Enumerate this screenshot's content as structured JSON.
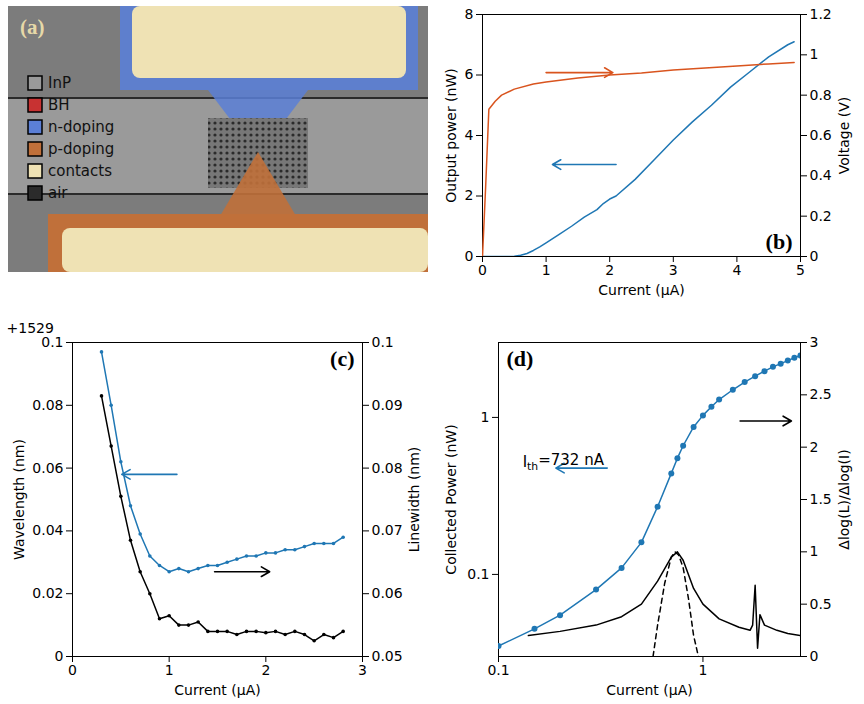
{
  "chart_data": [
    {
      "type": "image",
      "title": "(a)",
      "items": [
        {
          "name": "InP",
          "color": "#9a9a9a"
        },
        {
          "name": "BH",
          "color": "#c83232"
        },
        {
          "name": "n-doping",
          "color": "#5b7fd6"
        },
        {
          "name": "p-doping",
          "color": "#c0703a"
        },
        {
          "name": "contacts",
          "color": "#efe2b4"
        },
        {
          "name": "air",
          "color": "#2b2b2b"
        }
      ]
    },
    {
      "type": "line",
      "title": "(b)",
      "x_label": "Current (μA)",
      "y_label": "Output power (nW)",
      "y2_label": "Voltage (V)",
      "xlim": [
        0,
        5
      ],
      "xticks": [
        0,
        1,
        2,
        3,
        4,
        5
      ],
      "ylim": [
        0,
        8
      ],
      "yticks": [
        0,
        2,
        4,
        6,
        8
      ],
      "y2lim": [
        0,
        1.2
      ],
      "y2ticks": [
        0,
        0.2,
        0.4,
        0.6,
        0.8,
        1,
        1.2
      ],
      "series": [
        {
          "color": "#1f77b4",
          "axis": "y",
          "x": [
            0,
            0.2,
            0.4,
            0.5,
            0.6,
            0.7,
            0.8,
            0.9,
            1.0,
            1.2,
            1.4,
            1.6,
            1.8,
            1.9,
            2.0,
            2.1,
            2.4,
            2.7,
            3.0,
            3.3,
            3.6,
            3.9,
            4.2,
            4.5,
            4.8,
            4.9
          ],
          "values": [
            0,
            0,
            0,
            0.01,
            0.04,
            0.1,
            0.2,
            0.32,
            0.45,
            0.72,
            1.0,
            1.3,
            1.55,
            1.75,
            1.9,
            2.0,
            2.55,
            3.2,
            3.85,
            4.45,
            5.0,
            5.6,
            6.1,
            6.6,
            7.0,
            7.1
          ]
        },
        {
          "color": "#d9541e",
          "axis": "y2",
          "x": [
            0,
            0.05,
            0.1,
            0.2,
            0.3,
            0.5,
            0.8,
            1.0,
            1.5,
            2.0,
            2.5,
            3.0,
            3.5,
            4.0,
            4.5,
            4.9
          ],
          "values": [
            0,
            0.35,
            0.73,
            0.77,
            0.8,
            0.83,
            0.855,
            0.865,
            0.885,
            0.9,
            0.91,
            0.925,
            0.935,
            0.945,
            0.955,
            0.962
          ]
        }
      ]
    },
    {
      "type": "line",
      "title": "(c)",
      "x_label": "Current (μA)",
      "y_label": "Wavelength (nm)",
      "y2_label": "Linewidth (nm)",
      "annotations": [
        {
          "text": "+1529"
        }
      ],
      "xlim": [
        0,
        3
      ],
      "xticks": [
        0,
        1,
        2,
        3
      ],
      "ylim": [
        0,
        0.1
      ],
      "yticks": [
        0,
        0.02,
        0.04,
        0.06,
        0.08,
        0.1
      ],
      "y2lim": [
        0.05,
        0.1
      ],
      "y2ticks": [
        0.05,
        0.06,
        0.07,
        0.08,
        0.09,
        0.1
      ],
      "series": [
        {
          "color": "#1f77b4",
          "axis": "y",
          "marker": "circle",
          "x": [
            0.3,
            0.4,
            0.5,
            0.6,
            0.7,
            0.8,
            0.9,
            1.0,
            1.1,
            1.2,
            1.3,
            1.4,
            1.5,
            1.6,
            1.7,
            1.8,
            1.9,
            2.0,
            2.1,
            2.2,
            2.3,
            2.4,
            2.5,
            2.6,
            2.7,
            2.8
          ],
          "values": [
            0.097,
            0.08,
            0.062,
            0.048,
            0.039,
            0.032,
            0.029,
            0.027,
            0.028,
            0.027,
            0.028,
            0.029,
            0.029,
            0.03,
            0.031,
            0.032,
            0.032,
            0.033,
            0.033,
            0.034,
            0.034,
            0.035,
            0.036,
            0.036,
            0.036,
            0.038
          ]
        },
        {
          "color": "#000000",
          "axis": "y2",
          "marker": "circle",
          "x": [
            0.3,
            0.4,
            0.5,
            0.6,
            0.7,
            0.8,
            0.9,
            1.0,
            1.1,
            1.2,
            1.3,
            1.4,
            1.5,
            1.6,
            1.7,
            1.8,
            1.9,
            2.0,
            2.1,
            2.2,
            2.3,
            2.4,
            2.5,
            2.6,
            2.7,
            2.8
          ],
          "values": [
            0.0915,
            0.0835,
            0.0755,
            0.0685,
            0.0635,
            0.06,
            0.056,
            0.0565,
            0.055,
            0.055,
            0.0555,
            0.054,
            0.054,
            0.054,
            0.0535,
            0.054,
            0.054,
            0.0538,
            0.054,
            0.0535,
            0.054,
            0.0535,
            0.0525,
            0.0535,
            0.053,
            0.054
          ]
        }
      ]
    },
    {
      "type": "line",
      "title": "(d)",
      "log": true,
      "x_label": "Current (μA)",
      "y_label": "Collected Power (nW)",
      "y2_label": "Δlog(L)/Δlog(I)",
      "annotations": [
        {
          "text": "I",
          "subscript": "th",
          "tail": "=732 nA"
        }
      ],
      "xlim": [
        0.1,
        3
      ],
      "xticks": [
        0.1,
        1
      ],
      "ylim": [
        0.03,
        3
      ],
      "yticks": [
        0.1,
        1
      ],
      "y2lim": [
        0,
        3
      ],
      "y2ticks": [
        0,
        0.5,
        1,
        1.5,
        2,
        2.5,
        3
      ],
      "series": [
        {
          "color": "#1f77b4",
          "axis": "y",
          "marker": "circle",
          "x": [
            0.1,
            0.15,
            0.2,
            0.3,
            0.4,
            0.5,
            0.6,
            0.7,
            0.75,
            0.8,
            0.9,
            1.0,
            1.1,
            1.2,
            1.4,
            1.6,
            1.8,
            2.0,
            2.2,
            2.4,
            2.6,
            2.8,
            3.0
          ],
          "values": [
            0.035,
            0.045,
            0.055,
            0.08,
            0.11,
            0.16,
            0.27,
            0.44,
            0.55,
            0.66,
            0.87,
            1.03,
            1.17,
            1.3,
            1.5,
            1.68,
            1.83,
            1.97,
            2.1,
            2.2,
            2.3,
            2.4,
            2.48
          ]
        },
        {
          "color": "#000000",
          "axis": "y2",
          "x": [
            0.14,
            0.2,
            0.3,
            0.4,
            0.5,
            0.6,
            0.7,
            0.75,
            0.8,
            0.9,
            1.0,
            1.2,
            1.5,
            1.7,
            1.75,
            1.8,
            1.85,
            1.9,
            2.0,
            2.3,
            2.6,
            3.0
          ],
          "values": [
            0.2,
            0.24,
            0.3,
            0.38,
            0.5,
            0.72,
            0.95,
            1.0,
            0.92,
            0.65,
            0.5,
            0.36,
            0.28,
            0.25,
            0.3,
            0.68,
            0.08,
            0.4,
            0.3,
            0.25,
            0.22,
            0.2
          ]
        },
        {
          "color": "#000000",
          "axis": "y2",
          "line_style": "dashed",
          "x": [
            0.57,
            0.6,
            0.65,
            0.7,
            0.73,
            0.76,
            0.8,
            0.85,
            0.9,
            0.95
          ],
          "values": [
            0,
            0.3,
            0.7,
            0.95,
            1.0,
            0.97,
            0.85,
            0.55,
            0.2,
            0
          ]
        }
      ]
    }
  ]
}
